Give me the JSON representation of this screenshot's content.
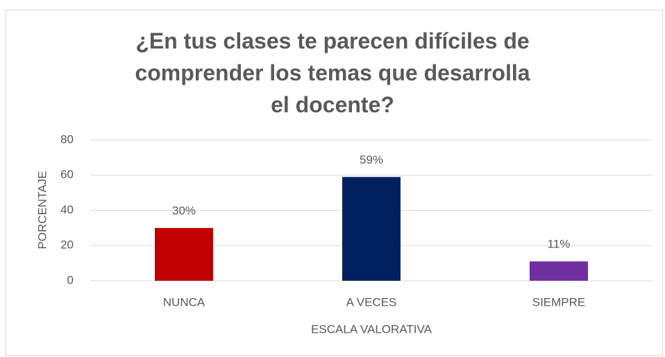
{
  "chart_data": {
    "type": "bar",
    "title": "¿En tus clases te parecen difíciles de comprender los temas que desarrolla el docente?",
    "x_label": "ESCALA VALORATIVA",
    "y_label": "PORCENTAJE",
    "categories": [
      "NUNCA",
      "A VECES",
      "SIEMPRE"
    ],
    "values": [
      30,
      59,
      11
    ],
    "value_labels": [
      "30%",
      "59%",
      "11%"
    ],
    "colors": [
      "#c00000",
      "#002060",
      "#7030a0"
    ],
    "ylim": [
      0,
      80
    ],
    "yticks": [
      0,
      20,
      40,
      60,
      80
    ],
    "grid": true
  }
}
